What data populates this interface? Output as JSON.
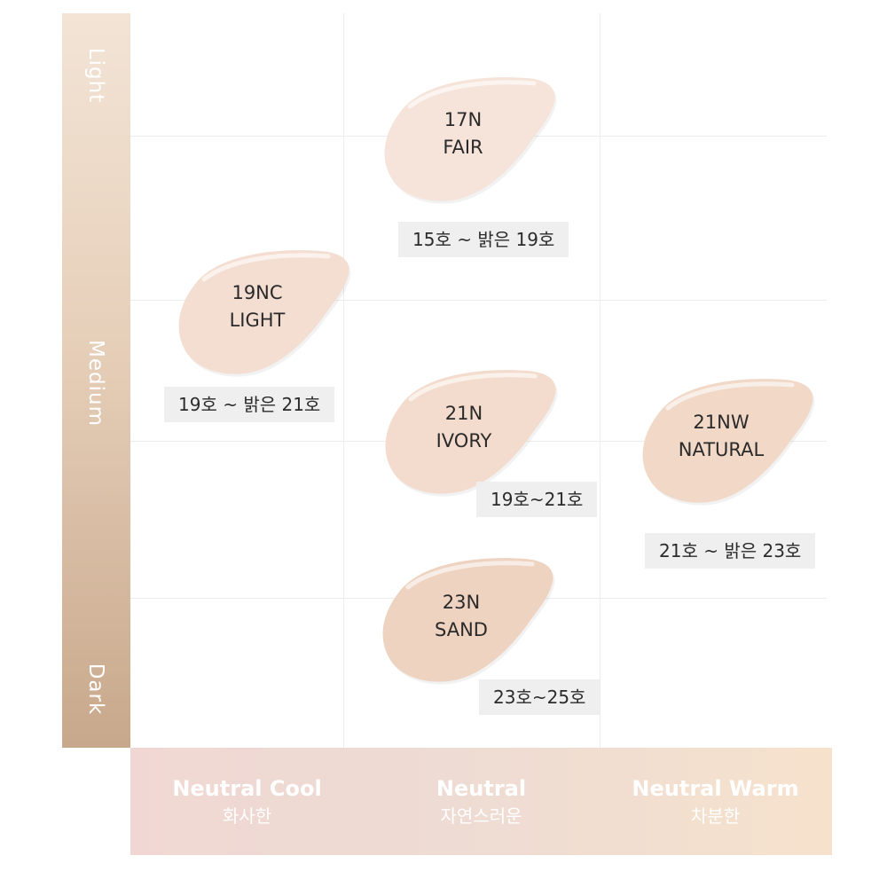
{
  "depth_axis": {
    "top": "Light",
    "middle": "Medium",
    "bottom": "Dark"
  },
  "undertone_axis": [
    {
      "en": "Neutral Cool",
      "ko": "화사한"
    },
    {
      "en": "Neutral",
      "ko": "자연스러운"
    },
    {
      "en": "Neutral Warm",
      "ko": "차분한"
    }
  ],
  "shades": [
    {
      "code": "17N",
      "name": "FAIR",
      "range": "15호 ~ 밝은 19호",
      "color": "#f6e3d9"
    },
    {
      "code": "19NC",
      "name": "LIGHT",
      "range": "19호 ~ 밝은 21호",
      "color": "#f4ded2"
    },
    {
      "code": "21N",
      "name": "IVORY",
      "range": "19호~21호",
      "color": "#f3dccd"
    },
    {
      "code": "21NW",
      "name": "NATURAL",
      "range": "21호 ~ 밝은 23호",
      "color": "#f1d8c7"
    },
    {
      "code": "23N",
      "name": "SAND",
      "range": "23호~25호",
      "color": "#eed3c1"
    }
  ]
}
